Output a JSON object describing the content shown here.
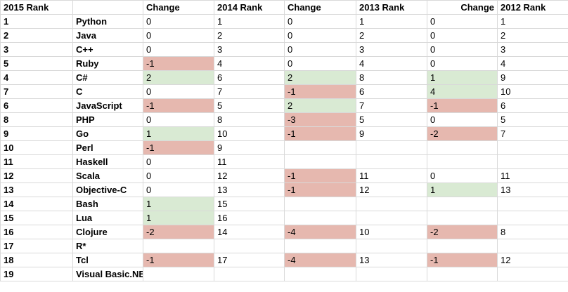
{
  "headers": [
    "2015 Rank",
    "",
    "Change",
    "2014 Rank",
    "Change",
    "2013 Rank",
    "Change",
    "2012 Rank"
  ],
  "rows": [
    {
      "rank": "1",
      "lang": "Python",
      "c1": "0",
      "r2014": "1",
      "c2": "0",
      "r2013": "1",
      "c3": "0",
      "r2012": "1"
    },
    {
      "rank": "2",
      "lang": "Java",
      "c1": "0",
      "r2014": "2",
      "c2": "0",
      "r2013": "2",
      "c3": "0",
      "r2012": "2"
    },
    {
      "rank": "3",
      "lang": "C++",
      "c1": "0",
      "r2014": "3",
      "c2": "0",
      "r2013": "3",
      "c3": "0",
      "r2012": "3"
    },
    {
      "rank": "5",
      "lang": "Ruby",
      "c1": "-1",
      "r2014": "4",
      "c2": "0",
      "r2013": "4",
      "c3": "0",
      "r2012": "4"
    },
    {
      "rank": "4",
      "lang": "C#",
      "c1": "2",
      "r2014": "6",
      "c2": "2",
      "r2013": "8",
      "c3": "1",
      "r2012": "9"
    },
    {
      "rank": "7",
      "lang": "C",
      "c1": "0",
      "r2014": "7",
      "c2": "-1",
      "r2013": "6",
      "c3": "4",
      "r2012": "10"
    },
    {
      "rank": "6",
      "lang": "JavaScript",
      "c1": "-1",
      "r2014": "5",
      "c2": "2",
      "r2013": "7",
      "c3": "-1",
      "r2012": "6"
    },
    {
      "rank": "8",
      "lang": "PHP",
      "c1": "0",
      "r2014": "8",
      "c2": "-3",
      "r2013": "5",
      "c3": "0",
      "r2012": "5"
    },
    {
      "rank": "9",
      "lang": "Go",
      "c1": "1",
      "r2014": "10",
      "c2": "-1",
      "r2013": "9",
      "c3": "-2",
      "r2012": "7"
    },
    {
      "rank": "10",
      "lang": "Perl",
      "c1": "-1",
      "r2014": "9",
      "c2": "",
      "r2013": "",
      "c3": "",
      "r2012": ""
    },
    {
      "rank": "11",
      "lang": "Haskell",
      "c1": "0",
      "r2014": "11",
      "c2": "",
      "r2013": "",
      "c3": "",
      "r2012": ""
    },
    {
      "rank": "12",
      "lang": "Scala",
      "c1": "0",
      "r2014": "12",
      "c2": "-1",
      "r2013": "11",
      "c3": "0",
      "r2012": "11"
    },
    {
      "rank": "13",
      "lang": "Objective-C",
      "c1": "0",
      "r2014": "13",
      "c2": "-1",
      "r2013": "12",
      "c3": "1",
      "r2012": "13"
    },
    {
      "rank": "14",
      "lang": "Bash",
      "c1": "1",
      "r2014": "15",
      "c2": "",
      "r2013": "",
      "c3": "",
      "r2012": ""
    },
    {
      "rank": "15",
      "lang": "Lua",
      "c1": "1",
      "r2014": "16",
      "c2": "",
      "r2013": "",
      "c3": "",
      "r2012": ""
    },
    {
      "rank": "16",
      "lang": "Clojure",
      "c1": "-2",
      "r2014": "14",
      "c2": "-4",
      "r2013": "10",
      "c3": "-2",
      "r2012": "8"
    },
    {
      "rank": "17",
      "lang": "R*",
      "c1": "",
      "r2014": "",
      "c2": "",
      "r2013": "",
      "c3": "",
      "r2012": ""
    },
    {
      "rank": "18",
      "lang": "Tcl",
      "c1": "-1",
      "r2014": "17",
      "c2": "-4",
      "r2013": "13",
      "c3": "-1",
      "r2012": "12"
    },
    {
      "rank": "19",
      "lang": "Visual Basic.NET*",
      "c1": "",
      "r2014": "",
      "c2": "",
      "r2013": "",
      "c3": "",
      "r2012": ""
    }
  ],
  "colors": {
    "positive": "#d9ead3",
    "negative": "#e6b8af",
    "grid": "#d9d9d9"
  }
}
